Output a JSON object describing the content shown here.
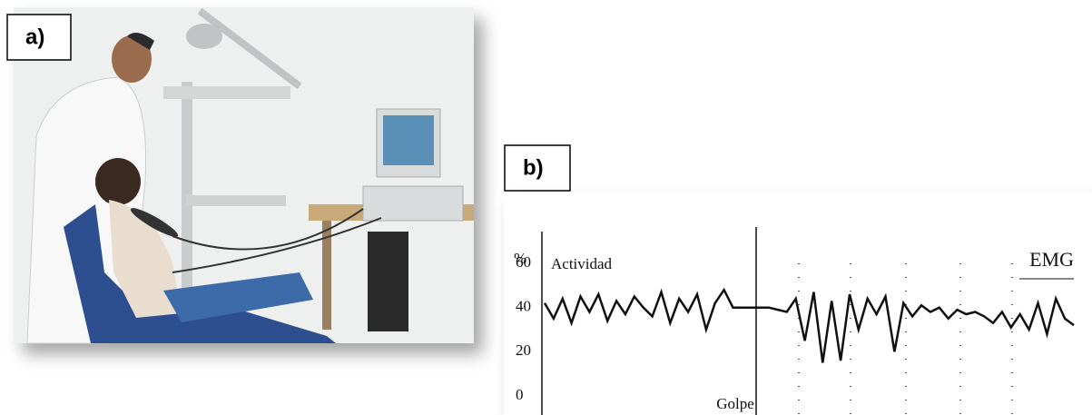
{
  "panel_labels": [
    "a)",
    "b)"
  ],
  "chart_data": {
    "type": "line",
    "y_unit": "%",
    "y_label": "Actividad",
    "title": "EMG",
    "annotation": "Golpe",
    "ylim": [
      0,
      60
    ],
    "yticks": [
      0,
      20,
      40,
      60
    ],
    "series": [
      {
        "color": "#111111",
        "values": [
          42,
          35,
          44,
          33,
          45,
          38,
          46,
          34,
          43,
          37,
          45,
          40,
          36,
          47,
          33,
          44,
          38,
          46,
          30,
          42,
          48,
          40,
          40,
          40,
          40,
          40,
          39,
          38,
          44,
          25,
          47,
          15,
          43,
          16,
          46,
          30,
          44,
          37,
          45,
          20,
          42,
          36,
          41,
          38,
          40,
          35,
          39,
          37,
          38,
          36,
          33,
          38,
          31,
          37,
          30,
          42,
          28,
          44,
          35,
          32
        ]
      }
    ]
  }
}
